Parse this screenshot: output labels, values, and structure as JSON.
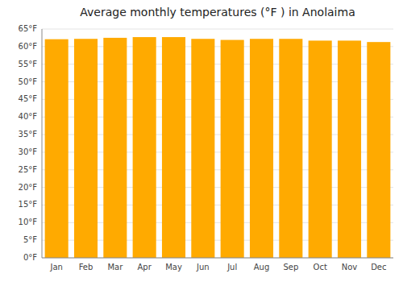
{
  "chart_data": {
    "type": "bar",
    "title": "Average monthly temperatures (°F ) in Anolaima",
    "categories": [
      "Jan",
      "Feb",
      "Mar",
      "Apr",
      "May",
      "Jun",
      "Jul",
      "Aug",
      "Sep",
      "Oct",
      "Nov",
      "Dec"
    ],
    "values": [
      62.1,
      62.2,
      62.5,
      62.7,
      62.7,
      62.2,
      61.9,
      62.2,
      62.2,
      61.7,
      61.7,
      61.3
    ],
    "color": "#FFAA00",
    "ylim": [
      0,
      65
    ],
    "yticks": [
      {
        "value": 0,
        "label": "0°F"
      },
      {
        "value": 5,
        "label": "5°F"
      },
      {
        "value": 10,
        "label": "10°F"
      },
      {
        "value": 15,
        "label": "15°F"
      },
      {
        "value": 20,
        "label": "20°F"
      },
      {
        "value": 25,
        "label": "25°F"
      },
      {
        "value": 30,
        "label": "30°F"
      },
      {
        "value": 35,
        "label": "35°F"
      },
      {
        "value": 40,
        "label": "40°F"
      },
      {
        "value": 45,
        "label": "45°F"
      },
      {
        "value": 50,
        "label": "50°F"
      },
      {
        "value": 55,
        "label": "55°F"
      },
      {
        "value": 60,
        "label": "60°F"
      },
      {
        "value": 65,
        "label": "65°F"
      }
    ],
    "grid": true
  }
}
